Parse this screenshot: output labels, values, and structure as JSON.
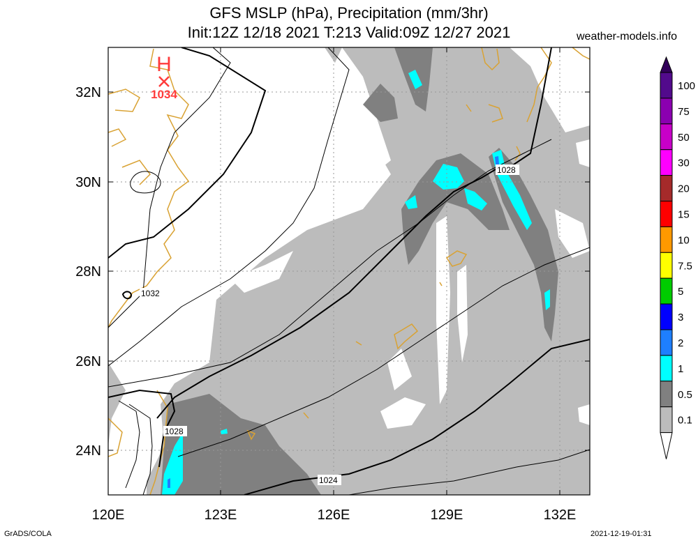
{
  "header": {
    "title_line1": "GFS MSLP (hPa), Precipitation (mm/3hr)",
    "title_line2": "Init:12Z 12/18 2021 T:213 Valid:09Z 12/27 2021",
    "source": "weather-models.info"
  },
  "footer": {
    "left": "GrADS/COLA",
    "right": "2021-12-19-01:31"
  },
  "map": {
    "lon_labels": [
      "120E",
      "123E",
      "126E",
      "129E",
      "132E"
    ],
    "lat_labels": [
      "32N",
      "30N",
      "28N",
      "26N",
      "24N"
    ],
    "high_center": {
      "symbol": "H",
      "value": "1034"
    },
    "isobar_labels": [
      "1032",
      "1028",
      "1028",
      "1024"
    ],
    "colors": {
      "coast": "#d9a233",
      "high": "#ff3b3b"
    }
  },
  "legend": {
    "levels": [
      "100",
      "75",
      "50",
      "30",
      "20",
      "15",
      "10",
      "7.5",
      "5",
      "3",
      "2",
      "1",
      "0.5",
      "0.1"
    ],
    "colors": [
      "#520a8c",
      "#8b00b0",
      "#c800c8",
      "#ff00ff",
      "#a52a2a",
      "#ff0000",
      "#ff9900",
      "#ffff00",
      "#00cc00",
      "#0000ff",
      "#1e7fff",
      "#00ffff",
      "#808080",
      "#bcbcbc"
    ]
  }
}
